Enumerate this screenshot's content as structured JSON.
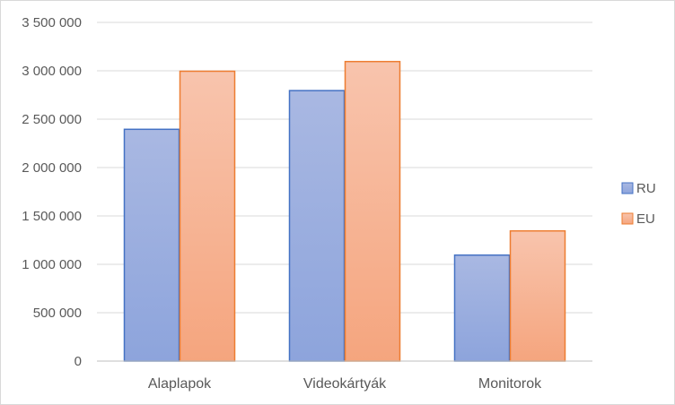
{
  "chart_data": {
    "type": "bar",
    "title": "",
    "xlabel": "",
    "ylabel": "",
    "categories": [
      "Alaplapok",
      "Videokártyák",
      "Monitorok"
    ],
    "series": [
      {
        "name": "RU",
        "values": [
          2400000,
          2800000,
          1100000
        ],
        "color": "#4472c4",
        "fill_top": "#a9b8e2",
        "fill_bottom": "#8da4dc"
      },
      {
        "name": "EU",
        "values": [
          3000000,
          3100000,
          1350000
        ],
        "color": "#ed7d31",
        "fill_top": "#f8c4ad",
        "fill_bottom": "#f5a57e"
      }
    ],
    "ylim": [
      0,
      3500000
    ],
    "yticks": [
      0,
      500000,
      1000000,
      1500000,
      2000000,
      2500000,
      3000000,
      3500000
    ],
    "ytick_labels": [
      "0",
      "500 000",
      "1 000 000",
      "1 500 000",
      "2 000 000",
      "2 500 000",
      "3 000 000",
      "3 500 000"
    ],
    "grid": true,
    "legend": "right",
    "gridline_color": "#d9d9d9",
    "axis_color": "#bfbfbf"
  }
}
